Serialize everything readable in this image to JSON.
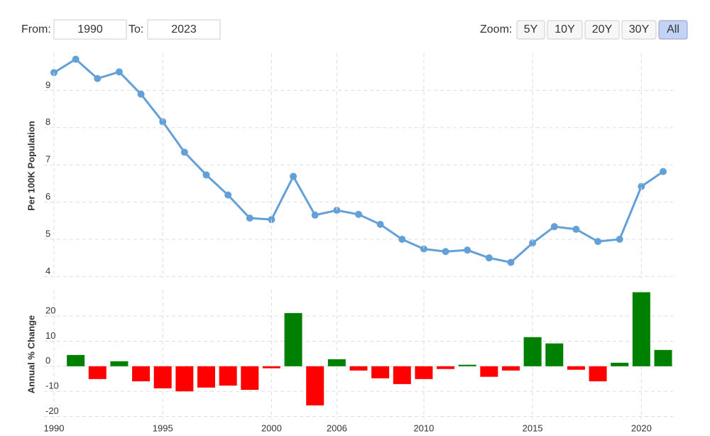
{
  "controls": {
    "from_label": "From:",
    "from_value": "1990",
    "to_label": "To:",
    "to_value": "2023",
    "zoom_label": "Zoom:",
    "zoom_buttons": [
      "5Y",
      "10Y",
      "20Y",
      "30Y",
      "All"
    ],
    "active_button": "All"
  },
  "chart_data": [
    {
      "type": "line",
      "ylabel": "Per 100K Population",
      "color": "#64a0d8",
      "values": [
        9.48,
        9.84,
        9.32,
        9.5,
        8.9,
        8.16,
        7.34,
        6.73,
        6.19,
        5.57,
        5.53,
        6.69,
        5.65,
        5.78,
        5.67,
        5.4,
        5.0,
        4.74,
        4.67,
        4.71,
        4.5,
        4.38,
        4.9,
        5.34,
        5.27,
        4.94,
        5.0,
        6.42,
        6.82
      ],
      "ylim": [
        3.95,
        10.0
      ],
      "yticks": [
        4,
        5,
        6,
        7,
        8,
        9
      ],
      "grid": true
    },
    {
      "type": "bar",
      "ylabel": "Annual % Change",
      "positive_color": "#008000",
      "negative_color": "#ff0000",
      "categories": [
        "1990",
        null,
        null,
        null,
        null,
        "1995",
        null,
        null,
        null,
        null,
        "2000",
        null,
        null,
        "2006",
        null,
        null,
        null,
        "2010",
        null,
        null,
        null,
        null,
        "2015",
        null,
        null,
        null,
        null,
        "2020",
        null
      ],
      "values": [
        null,
        4.5,
        -5.1,
        2,
        -6,
        -8.8,
        -10,
        -8.5,
        -7.7,
        -9.4,
        -0.8,
        21.2,
        -15.6,
        2.8,
        -1.7,
        -4.8,
        -7.1,
        -5.1,
        -1.1,
        0.6,
        -4.2,
        -1.7,
        11.6,
        9.1,
        -1.4,
        -6,
        1.4,
        29.5,
        6.5
      ],
      "ylim": [
        -21,
        30.5
      ],
      "yticks": [
        -20,
        -10,
        0,
        10,
        20
      ],
      "grid": true
    }
  ]
}
